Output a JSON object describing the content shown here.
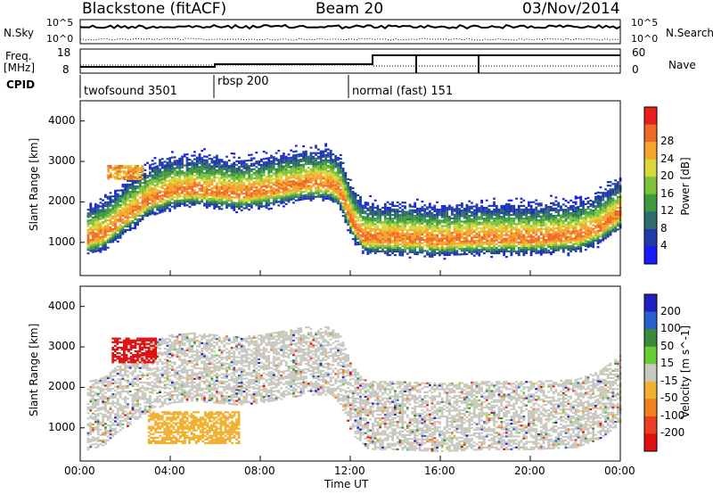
{
  "header": {
    "station": "Blackstone (fitACF)",
    "beam": "Beam 20",
    "date": "03/Nov/2014"
  },
  "status_panel": {
    "nsky_label": "N.Sky",
    "nsearch_label": "N.Search",
    "freq_label_1": "Freq.",
    "freq_label_2": "[MHz]",
    "nave_label": "Nave",
    "cpid_label": "CPID",
    "noise_ticks": [
      "10^5",
      "10^0"
    ],
    "noise_right_ticks": [
      "10^5",
      "10^0"
    ],
    "freq_ticks": [
      "18",
      "8"
    ],
    "nave_ticks": [
      "60",
      "0"
    ]
  },
  "modes": [
    {
      "name": "twofsound 3501",
      "start_hour": 0
    },
    {
      "name": "rbsp 200",
      "start_hour": 6
    },
    {
      "name": "normal (fast) 151",
      "start_hour": 12
    }
  ],
  "chart_data": [
    {
      "type": "heatmap",
      "title": "",
      "xlabel": "Time UT",
      "ylabel": "Slant Range [km]",
      "x_range_hours": [
        0,
        24
      ],
      "ylim": [
        180,
        4500
      ],
      "x_tick_labels": [
        "00:00",
        "04:00",
        "08:00",
        "12:00",
        "16:00",
        "20:00",
        "00:00"
      ],
      "y_tick_labels": [
        "1000",
        "2000",
        "3000",
        "4000"
      ],
      "colorbar": {
        "label": "Power [dB]",
        "ticks": [
          "4",
          "8",
          "12",
          "16",
          "20",
          "24",
          "28"
        ],
        "range": [
          0,
          30
        ],
        "colors": [
          "#1a1aff",
          "#1f3ba8",
          "#2e6b6b",
          "#3f9a3f",
          "#7cc23a",
          "#d8d83a",
          "#f5a52a",
          "#f06a25",
          "#e8201c"
        ]
      },
      "echo_bands": [
        {
          "t": [
            0,
            1,
            2,
            3,
            4,
            5,
            6,
            7,
            8,
            9,
            10,
            11,
            11.5,
            12,
            12.5,
            13,
            14,
            16,
            18,
            20,
            22,
            23,
            24
          ],
          "range_km": [
            1000,
            1150,
            1600,
            2000,
            2200,
            2250,
            2200,
            2150,
            2200,
            2300,
            2400,
            2400,
            2200,
            1500,
            1100,
            1050,
            1050,
            1000,
            1050,
            1050,
            1100,
            1300,
            1700
          ],
          "peak_db": 24
        }
      ],
      "notable_regions": [
        {
          "t_start": 1.2,
          "t_end": 2.8,
          "range_start": 2550,
          "range_end": 2900,
          "peak_db": 26
        }
      ]
    },
    {
      "type": "heatmap",
      "title": "",
      "xlabel": "Time UT",
      "ylabel": "Slant Range [km]",
      "x_range_hours": [
        0,
        24
      ],
      "ylim": [
        180,
        4500
      ],
      "x_tick_labels": [
        "00:00",
        "04:00",
        "08:00",
        "12:00",
        "16:00",
        "20:00",
        "00:00"
      ],
      "y_tick_labels": [
        "1000",
        "2000",
        "3000",
        "4000"
      ],
      "colorbar": {
        "label": "Velocity [m s^-1]",
        "ticks": [
          "200",
          "100",
          "50",
          "15",
          "-15",
          "-50",
          "-100",
          "-200"
        ],
        "range": [
          -250,
          250
        ],
        "colors": [
          "#2020c0",
          "#2860d0",
          "#3a8a3a",
          "#66cc33",
          "#c8c8c0",
          "#f0b030",
          "#f08020",
          "#e84020",
          "#e01010"
        ]
      },
      "notable_regions": [
        {
          "t_start": 1.4,
          "t_end": 3.4,
          "range_start": 2600,
          "range_end": 3200,
          "velocity": -220
        },
        {
          "t_start": 3.0,
          "t_end": 7.0,
          "range_start": 600,
          "range_end": 1400,
          "velocity": -40
        }
      ]
    }
  ]
}
